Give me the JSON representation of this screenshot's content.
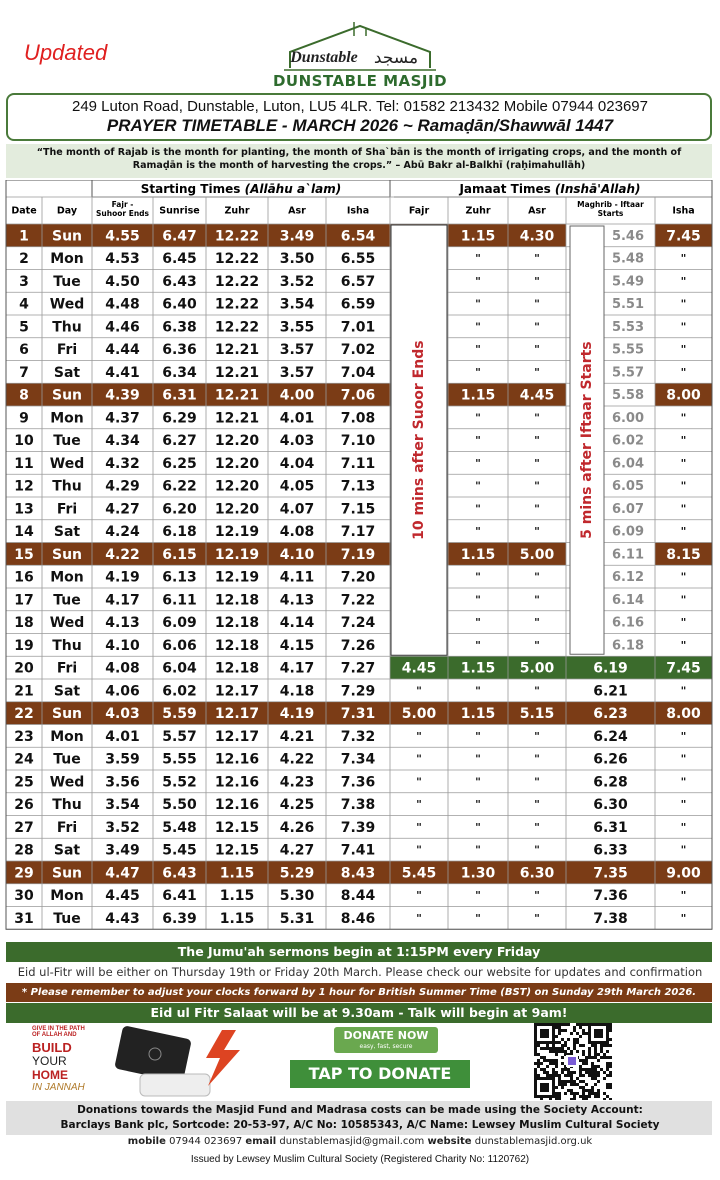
{
  "header": {
    "updated": "Updated",
    "logo_latin": "Dunstable",
    "logo_arabic": "مسجد",
    "masjid": "DUNSTABLE MASJID",
    "address": "249 Luton Road, Dunstable, Luton, LU5 4LR. Tel: 01582 213432 Mobile 07944 023697",
    "title": "PRAYER TIMETABLE - MARCH 2026 ~ Ramaḍān/Shawwāl 1447"
  },
  "quote": "“The month of Rajab is the month for planting, the month of Sha`bān is the month of irrigating crops, and the month of Ramaḍān is the month of harvesting the crops.” – Abū Bakr al-Balkhī (raḥimahullāh)",
  "table": {
    "group_start": "Starting Times",
    "group_start_note": "(Allāhu a`lam)",
    "group_jamaat": "Jamaat Times",
    "group_jamaat_note": "(Inshā'Allah)",
    "columns": [
      "Date",
      "Day",
      [
        "Fajr -",
        "Suhoor Ends"
      ],
      "Sunrise",
      "Zuhr",
      "Asr",
      "Isha",
      "Fajr",
      "Zuhr",
      "Asr",
      [
        "Maghrib - Iftaar",
        "Starts"
      ],
      "Isha"
    ],
    "fajr_note": "10 mins after Suoor Ends",
    "maghrib_note": "5 mins after Iftaar Starts",
    "rows": [
      [
        1,
        "Sun",
        "4.55",
        "6.47",
        "12.22",
        "3.49",
        "6.54",
        null,
        "1.15",
        "4.30",
        "5.46",
        "7.45"
      ],
      [
        2,
        "Mon",
        "4.53",
        "6.45",
        "12.22",
        "3.50",
        "6.55",
        null,
        "\"",
        "\"",
        "5.48",
        "\""
      ],
      [
        3,
        "Tue",
        "4.50",
        "6.43",
        "12.22",
        "3.52",
        "6.57",
        null,
        "\"",
        "\"",
        "5.49",
        "\""
      ],
      [
        4,
        "Wed",
        "4.48",
        "6.40",
        "12.22",
        "3.54",
        "6.59",
        null,
        "\"",
        "\"",
        "5.51",
        "\""
      ],
      [
        5,
        "Thu",
        "4.46",
        "6.38",
        "12.22",
        "3.55",
        "7.01",
        null,
        "\"",
        "\"",
        "5.53",
        "\""
      ],
      [
        6,
        "Fri",
        "4.44",
        "6.36",
        "12.21",
        "3.57",
        "7.02",
        null,
        "\"",
        "\"",
        "5.55",
        "\""
      ],
      [
        7,
        "Sat",
        "4.41",
        "6.34",
        "12.21",
        "3.57",
        "7.04",
        null,
        "\"",
        "\"",
        "5.57",
        "\""
      ],
      [
        8,
        "Sun",
        "4.39",
        "6.31",
        "12.21",
        "4.00",
        "7.06",
        null,
        "1.15",
        "4.45",
        "5.58",
        "8.00"
      ],
      [
        9,
        "Mon",
        "4.37",
        "6.29",
        "12.21",
        "4.01",
        "7.08",
        null,
        "\"",
        "\"",
        "6.00",
        "\""
      ],
      [
        10,
        "Tue",
        "4.34",
        "6.27",
        "12.20",
        "4.03",
        "7.10",
        null,
        "\"",
        "\"",
        "6.02",
        "\""
      ],
      [
        11,
        "Wed",
        "4.32",
        "6.25",
        "12.20",
        "4.04",
        "7.11",
        null,
        "\"",
        "\"",
        "6.04",
        "\""
      ],
      [
        12,
        "Thu",
        "4.29",
        "6.22",
        "12.20",
        "4.05",
        "7.13",
        null,
        "\"",
        "\"",
        "6.05",
        "\""
      ],
      [
        13,
        "Fri",
        "4.27",
        "6.20",
        "12.20",
        "4.07",
        "7.15",
        null,
        "\"",
        "\"",
        "6.07",
        "\""
      ],
      [
        14,
        "Sat",
        "4.24",
        "6.18",
        "12.19",
        "4.08",
        "7.17",
        null,
        "\"",
        "\"",
        "6.09",
        "\""
      ],
      [
        15,
        "Sun",
        "4.22",
        "6.15",
        "12.19",
        "4.10",
        "7.19",
        null,
        "1.15",
        "5.00",
        "6.11",
        "8.15"
      ],
      [
        16,
        "Mon",
        "4.19",
        "6.13",
        "12.19",
        "4.11",
        "7.20",
        null,
        "\"",
        "\"",
        "6.12",
        "\""
      ],
      [
        17,
        "Tue",
        "4.17",
        "6.11",
        "12.18",
        "4.13",
        "7.22",
        null,
        "\"",
        "\"",
        "6.14",
        "\""
      ],
      [
        18,
        "Wed",
        "4.13",
        "6.09",
        "12.18",
        "4.14",
        "7.24",
        null,
        "\"",
        "\"",
        "6.16",
        "\""
      ],
      [
        19,
        "Thu",
        "4.10",
        "6.06",
        "12.18",
        "4.15",
        "7.26",
        null,
        "\"",
        "\"",
        "6.18",
        "\""
      ],
      [
        20,
        "Fri",
        "4.08",
        "6.04",
        "12.18",
        "4.17",
        "7.27",
        "4.45",
        "1.15",
        "5.00",
        "6.19",
        "7.45"
      ],
      [
        21,
        "Sat",
        "4.06",
        "6.02",
        "12.17",
        "4.18",
        "7.29",
        "\"",
        "\"",
        "\"",
        "6.21",
        "\""
      ],
      [
        22,
        "Sun",
        "4.03",
        "5.59",
        "12.17",
        "4.19",
        "7.31",
        "5.00",
        "1.15",
        "5.15",
        "6.23",
        "8.00"
      ],
      [
        23,
        "Mon",
        "4.01",
        "5.57",
        "12.17",
        "4.21",
        "7.32",
        "\"",
        "\"",
        "\"",
        "6.24",
        "\""
      ],
      [
        24,
        "Tue",
        "3.59",
        "5.55",
        "12.16",
        "4.22",
        "7.34",
        "\"",
        "\"",
        "\"",
        "6.26",
        "\""
      ],
      [
        25,
        "Wed",
        "3.56",
        "5.52",
        "12.16",
        "4.23",
        "7.36",
        "\"",
        "\"",
        "\"",
        "6.28",
        "\""
      ],
      [
        26,
        "Thu",
        "3.54",
        "5.50",
        "12.16",
        "4.25",
        "7.38",
        "\"",
        "\"",
        "\"",
        "6.30",
        "\""
      ],
      [
        27,
        "Fri",
        "3.52",
        "5.48",
        "12.15",
        "4.26",
        "7.39",
        "\"",
        "\"",
        "\"",
        "6.31",
        "\""
      ],
      [
        28,
        "Sat",
        "3.49",
        "5.45",
        "12.15",
        "4.27",
        "7.41",
        "\"",
        "\"",
        "\"",
        "6.33",
        "\""
      ],
      [
        29,
        "Sun",
        "4.47",
        "6.43",
        "1.15",
        "5.29",
        "8.43",
        "5.45",
        "1.30",
        "6.30",
        "7.35",
        "9.00"
      ],
      [
        30,
        "Mon",
        "4.45",
        "6.41",
        "1.15",
        "5.30",
        "8.44",
        "\"",
        "\"",
        "\"",
        "7.36",
        "\""
      ],
      [
        31,
        "Tue",
        "4.43",
        "6.39",
        "1.15",
        "5.31",
        "8.46",
        "\"",
        "\"",
        "\"",
        "7.38",
        "\""
      ]
    ]
  },
  "footer": {
    "jumuah": "The Jumu'ah sermons begin at 1:15PM every Friday",
    "eid": "Eid ul-Fitr will be either on Thursday 19th or Friday 20th March. Please check our website for updates and confirmation",
    "clocks": "* Please remember to adjust your clocks forward by 1 hour for British Summer Time (BST) on Sunday 29th March 2026.",
    "eid_salaat": "Eid ul Fitr Salaat will be at 9.30am - Talk will begin at 9am!"
  },
  "promo": {
    "give": "GIVE IN THE PATH OF ALLAH AND",
    "build": "BUILD",
    "your": "YOUR",
    "home": "HOME",
    "jannah": "IN JANNAH",
    "donate_now": "DONATE NOW",
    "donate_sub": "easy, fast, secure",
    "tap": "TAP TO DONATE"
  },
  "donations": {
    "line1": "Donations towards the Masjid Fund and Madrasa costs can be made using the Society Account:",
    "line2": "Barclays Bank plc, Sortcode: 20-53-97, A/C No: 10585343, A/C Name: Lewsey Muslim Cultural Society"
  },
  "contact": {
    "mobile_label": "mobile",
    "mobile": "07944 023697",
    "email_label": "email",
    "email": "dunstablemasjid@gmail.com",
    "website_label": "website",
    "website": "dunstablemasjid.org.uk"
  },
  "issued": "Issued by Lewsey Muslim Cultural Society (Registered Charity No: 1120762)"
}
